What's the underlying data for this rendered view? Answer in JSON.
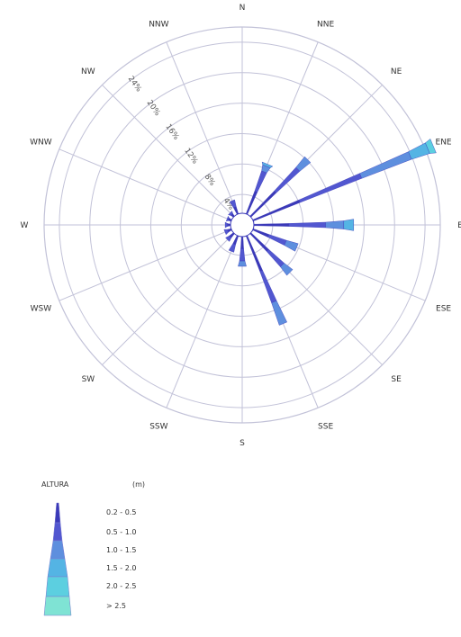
{
  "chart_data": {
    "type": "wind-rose",
    "title": "",
    "directions": [
      "N",
      "NNE",
      "NE",
      "ENE",
      "E",
      "ESE",
      "SE",
      "SSE",
      "S",
      "SSW",
      "SW",
      "WSW",
      "W",
      "WNW",
      "NW",
      "NNW"
    ],
    "rings": [
      4,
      8,
      12,
      16,
      20,
      24
    ],
    "ring_labels": [
      "4%",
      "8%",
      "12%",
      "16%",
      "20%",
      "24%"
    ],
    "rmax": 26,
    "legend": {
      "title": "ALTURA",
      "unit": "(m)",
      "classes": [
        "0.2 - 0.5",
        "0.5 - 1.0",
        "1.0 - 1.5",
        "1.5 - 2.0",
        "2.0 - 2.5",
        "> 2.5"
      ]
    },
    "colors": [
      "#3a39b8",
      "#5257d0",
      "#5e8fde",
      "#54b4e4",
      "#5ccfe0",
      "#7fe3d4"
    ],
    "grid_color": "#c2c2d8",
    "series": [
      {
        "direction": "N",
        "values": [
          0.0,
          0.0,
          0.0,
          0.0,
          0.0,
          0.0
        ]
      },
      {
        "direction": "NNE",
        "values": [
          3.2,
          2.8,
          0.8,
          0.3,
          0.0,
          0.0
        ]
      },
      {
        "direction": "NE",
        "values": [
          4.6,
          4.2,
          1.8,
          0.0,
          0.0,
          0.0
        ]
      },
      {
        "direction": "ENE",
        "values": [
          6.6,
          8.7,
          7.0,
          2.5,
          0.8,
          0.0
        ]
      },
      {
        "direction": "E",
        "values": [
          4.6,
          4.8,
          2.4,
          1.3,
          0.0,
          0.0
        ]
      },
      {
        "direction": "ESE",
        "values": [
          2.2,
          2.4,
          1.6,
          0.0,
          0.0,
          0.0
        ]
      },
      {
        "direction": "SE",
        "values": [
          3.2,
          2.7,
          1.4,
          0.0,
          0.0,
          0.0
        ]
      },
      {
        "direction": "SSE",
        "values": [
          5.0,
          4.4,
          3.1,
          0.0,
          0.0,
          0.0
        ]
      },
      {
        "direction": "S",
        "values": [
          1.6,
          1.6,
          0.7,
          0.0,
          0.0,
          0.0
        ]
      },
      {
        "direction": "SSW",
        "values": [
          1.2,
          1.0,
          0.0,
          0.0,
          0.0,
          0.0
        ]
      },
      {
        "direction": "SW",
        "values": [
          0.7,
          0.5,
          0.0,
          0.0,
          0.0,
          0.0
        ]
      },
      {
        "direction": "WSW",
        "values": [
          0.5,
          0.4,
          0.0,
          0.0,
          0.0,
          0.0
        ]
      },
      {
        "direction": "W",
        "values": [
          0.4,
          0.3,
          0.0,
          0.0,
          0.0,
          0.0
        ]
      },
      {
        "direction": "WNW",
        "values": [
          0.4,
          0.2,
          0.0,
          0.0,
          0.0,
          0.0
        ]
      },
      {
        "direction": "NW",
        "values": [
          0.4,
          0.3,
          0.0,
          0.0,
          0.0,
          0.0
        ]
      },
      {
        "direction": "NNW",
        "values": [
          1.0,
          0.9,
          0.0,
          0.0,
          0.0,
          0.0
        ]
      }
    ]
  }
}
